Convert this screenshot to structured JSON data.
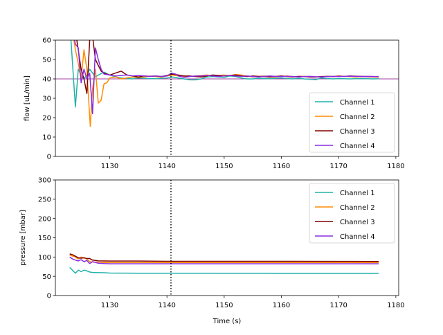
{
  "chart_data": [
    {
      "type": "line",
      "xlabel": "",
      "ylabel": "flow [uL/min]",
      "xlim": [
        1120.5,
        1180.5
      ],
      "ylim": [
        0,
        60
      ],
      "xticks": [
        1130,
        1140,
        1150,
        1160,
        1170,
        1180
      ],
      "yticks": [
        0,
        10,
        20,
        30,
        40,
        50,
        60
      ],
      "xtick_labels": [
        "1130",
        "1140",
        "1150",
        "1160",
        "1170",
        "1180"
      ],
      "ytick_labels": [
        "0",
        "10",
        "20",
        "30",
        "40",
        "50",
        "60"
      ],
      "grid": false,
      "legend_position": "lower-right",
      "vline_x": 1140.7,
      "hline_y": 40,
      "hline_color": "#800080",
      "series": [
        {
          "name": "Channel 1",
          "color": "#20b2aa",
          "x": [
            1123,
            1124,
            1124.5,
            1125,
            1125.5,
            1126,
            1126.5,
            1127,
            1127.5,
            1128,
            1129,
            1130,
            1131,
            1132,
            1133,
            1134,
            1135,
            1136,
            1137,
            1138,
            1139,
            1140,
            1141,
            1142,
            1143,
            1144,
            1145,
            1146,
            1147,
            1148,
            1149,
            1150,
            1151,
            1152,
            1153,
            1154,
            1155,
            1156,
            1157,
            1158,
            1159,
            1160,
            1161,
            1162,
            1163,
            1164,
            1165,
            1166,
            1167,
            1168,
            1169,
            1170,
            1171,
            1172,
            1173,
            1174,
            1175,
            1176,
            1177
          ],
          "y": [
            70,
            25.5,
            45,
            42,
            40,
            42,
            45,
            43,
            41,
            42,
            43.5,
            42,
            41,
            40.5,
            40.2,
            40,
            40.5,
            40.3,
            40.2,
            40.1,
            40.3,
            40.5,
            41,
            40.5,
            40,
            39.5,
            39.5,
            40,
            41,
            41.2,
            41,
            40.8,
            41.5,
            41.2,
            40.5,
            40,
            40,
            40.3,
            40.2,
            40.1,
            40.3,
            40.5,
            40.2,
            40,
            40.3,
            40,
            39.8,
            39.6,
            40.5,
            40.2,
            40,
            40.2,
            40.1,
            40,
            40.1,
            40.2,
            40.1,
            40,
            40.1
          ]
        },
        {
          "name": "Channel 2",
          "color": "#ff8c00",
          "x": [
            1123,
            1124,
            1124.5,
            1125,
            1125.5,
            1126,
            1126.3,
            1126.6,
            1127,
            1127.5,
            1128,
            1128.5,
            1129,
            1129.5,
            1130,
            1131,
            1132,
            1133,
            1134,
            1135,
            1136,
            1137,
            1138,
            1139,
            1140,
            1141,
            1142,
            1143,
            1144,
            1145,
            1146,
            1147,
            1148,
            1149,
            1150,
            1151,
            1152,
            1153,
            1154,
            1155,
            1156,
            1157,
            1158,
            1159,
            1160,
            1161,
            1162,
            1163,
            1164,
            1165,
            1166,
            1167,
            1168,
            1169,
            1170,
            1171,
            1172,
            1173,
            1174,
            1175,
            1176,
            1177
          ],
          "y": [
            75,
            55,
            48,
            40,
            55,
            45,
            30,
            15.5,
            35,
            45,
            27.5,
            29,
            37.5,
            38,
            40.5,
            41,
            40,
            40.5,
            41,
            40.8,
            41,
            41.5,
            41.2,
            41,
            41.5,
            42,
            41.5,
            41,
            41.3,
            41.5,
            41.8,
            42,
            41.5,
            41.8,
            42,
            41.7,
            42.3,
            42,
            41.5,
            41,
            41.3,
            41.5,
            41.2,
            41,
            41.3,
            41.5,
            41.2,
            41,
            41.3,
            41.2,
            41,
            41.1,
            41.3,
            41.2,
            41.5,
            41.3,
            41.2,
            41,
            41.2,
            41.1,
            41,
            41
          ]
        },
        {
          "name": "Channel 3",
          "color": "#800000",
          "x": [
            1123,
            1124,
            1124.5,
            1125,
            1125.5,
            1126,
            1126.5,
            1127,
            1127.5,
            1128,
            1128.5,
            1129,
            1130,
            1131,
            1132,
            1133,
            1134,
            1135,
            1136,
            1137,
            1138,
            1139,
            1140,
            1141,
            1142,
            1143,
            1144,
            1145,
            1146,
            1147,
            1148,
            1149,
            1150,
            1151,
            1152,
            1153,
            1154,
            1155,
            1156,
            1157,
            1158,
            1159,
            1160,
            1161,
            1162,
            1163,
            1164,
            1165,
            1166,
            1167,
            1168,
            1169,
            1170,
            1171,
            1172,
            1173,
            1174,
            1175,
            1176,
            1177
          ],
          "y": [
            75,
            65,
            55,
            45,
            40,
            32.5,
            60,
            62,
            50,
            47,
            44,
            43,
            42,
            43,
            44,
            42,
            41.5,
            41,
            41.5,
            41.3,
            41.5,
            41.2,
            41.8,
            42.5,
            42,
            41.5,
            41.5,
            41.2,
            41,
            41.5,
            42,
            41.8,
            41.5,
            41.8,
            42,
            41.5,
            41.2,
            41.5,
            41.3,
            41.2,
            41,
            41.3,
            41.5,
            41.2,
            41,
            41.3,
            41.2,
            41,
            41,
            41.2,
            41.3,
            41.2,
            41.4,
            41.3,
            41.5,
            41.4,
            41.3,
            41.2,
            41.2,
            41.1
          ]
        },
        {
          "name": "Channel 4",
          "color": "#8a2be2",
          "x": [
            1123,
            1124,
            1124.5,
            1125,
            1125.5,
            1126,
            1126.5,
            1127,
            1127.5,
            1128,
            1128.5,
            1129,
            1130,
            1131,
            1132,
            1133,
            1134,
            1135,
            1136,
            1137,
            1138,
            1139,
            1140,
            1140.8,
            1141.5,
            1142,
            1143,
            1144,
            1145,
            1146,
            1147,
            1148,
            1149,
            1150,
            1151,
            1152,
            1153,
            1154,
            1155,
            1156,
            1157,
            1158,
            1159,
            1160,
            1161,
            1162,
            1163,
            1164,
            1165,
            1166,
            1167,
            1168,
            1169,
            1170,
            1171,
            1172,
            1173,
            1174,
            1175,
            1176,
            1177
          ],
          "y": [
            75,
            58,
            56,
            38,
            45,
            40,
            43,
            22,
            56,
            50,
            45,
            42.5,
            42,
            41.5,
            41.8,
            42,
            41.5,
            41.8,
            41.5,
            41.3,
            41.5,
            41.3,
            41.5,
            43,
            42.5,
            41.5,
            40.8,
            41.2,
            41.5,
            41.5,
            41.8,
            41.5,
            41.3,
            41.5,
            41.8,
            41.5,
            41.3,
            41.5,
            41.2,
            41,
            41.3,
            41.5,
            41.3,
            41.2,
            41.4,
            41.2,
            41,
            41.2,
            41.3,
            41.1,
            41,
            41.2,
            41.3,
            41.2,
            41.3,
            41.4,
            41.3,
            41.2,
            41.3,
            41.2,
            41.2
          ]
        }
      ]
    },
    {
      "type": "line",
      "xlabel": "Time (s)",
      "ylabel": "pressure [mbar]",
      "xlim": [
        1120.5,
        1180.5
      ],
      "ylim": [
        0,
        300
      ],
      "xticks": [
        1130,
        1140,
        1150,
        1160,
        1170,
        1180
      ],
      "yticks": [
        0,
        50,
        100,
        150,
        200,
        250,
        300
      ],
      "xtick_labels": [
        "1130",
        "1140",
        "1150",
        "1160",
        "1170",
        "1180"
      ],
      "ytick_labels": [
        "0",
        "50",
        "100",
        "150",
        "200",
        "250",
        "300"
      ],
      "grid": false,
      "legend_position": "upper-right",
      "vline_x": 1140.7,
      "series": [
        {
          "name": "Channel 1",
          "color": "#20b2aa",
          "x": [
            1123,
            1124,
            1124.5,
            1125,
            1125.5,
            1126,
            1126.5,
            1127,
            1128,
            1129,
            1130,
            1135,
            1140,
            1145,
            1150,
            1160,
            1170,
            1177
          ],
          "y": [
            73,
            58,
            66,
            62,
            66,
            64,
            61,
            60,
            59.5,
            59.2,
            58.5,
            58,
            58,
            58,
            57.8,
            57.6,
            57.5,
            57.5
          ]
        },
        {
          "name": "Channel 2",
          "color": "#ff8c00",
          "x": [
            1123,
            1124,
            1124.5,
            1125,
            1125.5,
            1126,
            1126.5,
            1127,
            1128,
            1130,
            1135,
            1140,
            1150,
            1160,
            1170,
            1177
          ],
          "y": [
            105,
            100,
            95,
            100,
            98,
            95,
            88,
            87,
            86,
            85.5,
            85.5,
            85.5,
            85.5,
            85.5,
            85.5,
            85.5
          ]
        },
        {
          "name": "Channel 3",
          "color": "#800000",
          "x": [
            1123,
            1123.5,
            1124,
            1124.5,
            1125,
            1125.5,
            1126,
            1126.5,
            1127,
            1128,
            1130,
            1135,
            1140,
            1150,
            1160,
            1170,
            1177
          ],
          "y": [
            108,
            106,
            102,
            98,
            97,
            98,
            96,
            96,
            92,
            90,
            89.5,
            89.5,
            89,
            89,
            89,
            88.8,
            88.5
          ]
        },
        {
          "name": "Channel 4",
          "color": "#8a2be2",
          "x": [
            1123,
            1123.5,
            1124,
            1124.5,
            1125,
            1125.5,
            1126,
            1126.5,
            1127,
            1127.5,
            1128,
            1129,
            1130,
            1135,
            1140,
            1150,
            1160,
            1170,
            1177
          ],
          "y": [
            100,
            95,
            92,
            90,
            93,
            88,
            91,
            83,
            88,
            86,
            84,
            83,
            82.5,
            82.5,
            82.5,
            82.5,
            82.5,
            82.5,
            82.5
          ]
        }
      ]
    }
  ]
}
